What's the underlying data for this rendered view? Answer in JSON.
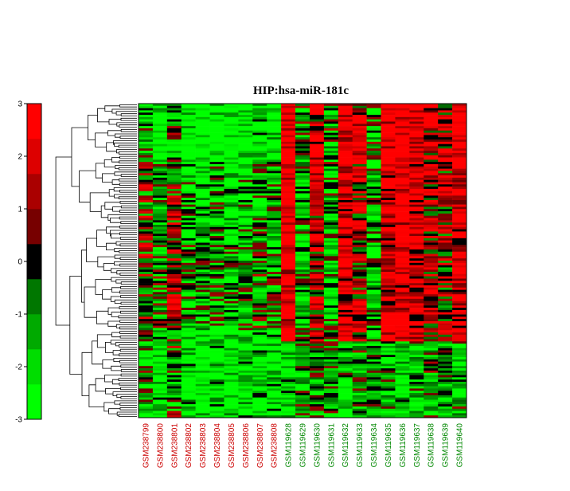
{
  "chart_data": {
    "type": "heatmap",
    "title": "HIP:hsa-miR-181c",
    "colorbar": {
      "ticks": [
        3,
        2,
        1,
        0,
        -1,
        -2,
        -3
      ],
      "range": [
        -3,
        3
      ],
      "colors": [
        "#00ff00",
        "#00dd00",
        "#00aa00",
        "#007700",
        "#000000",
        "#770000",
        "#aa0000",
        "#dd0000",
        "#ff0000"
      ]
    },
    "columns": [
      {
        "label": "GSM238799",
        "group_color": "#cc0000"
      },
      {
        "label": "GSM238800",
        "group_color": "#cc0000"
      },
      {
        "label": "GSM238801",
        "group_color": "#cc0000"
      },
      {
        "label": "GSM238802",
        "group_color": "#cc0000"
      },
      {
        "label": "GSM238803",
        "group_color": "#cc0000"
      },
      {
        "label": "GSM238804",
        "group_color": "#cc0000"
      },
      {
        "label": "GSM238805",
        "group_color": "#cc0000"
      },
      {
        "label": "GSM238806",
        "group_color": "#cc0000"
      },
      {
        "label": "GSM238807",
        "group_color": "#cc0000"
      },
      {
        "label": "GSM238808",
        "group_color": "#cc0000"
      },
      {
        "label": "GSM119628",
        "group_color": "#008800"
      },
      {
        "label": "GSM119629",
        "group_color": "#008800"
      },
      {
        "label": "GSM119630",
        "group_color": "#008800"
      },
      {
        "label": "GSM119631",
        "group_color": "#008800"
      },
      {
        "label": "GSM119632",
        "group_color": "#008800"
      },
      {
        "label": "GSM119633",
        "group_color": "#008800"
      },
      {
        "label": "GSM119634",
        "group_color": "#008800"
      },
      {
        "label": "GSM119635",
        "group_color": "#008800"
      },
      {
        "label": "GSM119636",
        "group_color": "#008800"
      },
      {
        "label": "GSM119637",
        "group_color": "#008800"
      },
      {
        "label": "GSM119638",
        "group_color": "#008800"
      },
      {
        "label": "GSM119639",
        "group_color": "#008800"
      },
      {
        "label": "GSM119640",
        "group_color": "#008800"
      }
    ],
    "column_tendency": [
      -0.2,
      -1.2,
      0.2,
      -1.3,
      -1.6,
      -1.1,
      -1.5,
      -1.3,
      -1.0,
      -1.2,
      2.0,
      -0.9,
      1.0,
      -0.7,
      1.6,
      0.8,
      -0.9,
      1.7,
      1.9,
      1.6,
      0.9,
      0.7,
      1.6
    ],
    "row_count": 140,
    "colormap": "green-black-red",
    "dendrogram": "rows"
  }
}
